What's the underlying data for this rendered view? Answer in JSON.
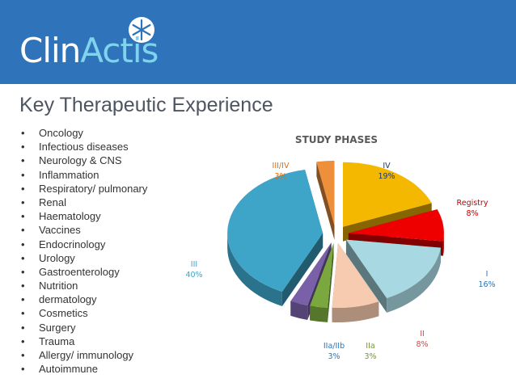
{
  "brand": {
    "logo_part1": "Clin",
    "logo_part2": "Actis",
    "header_color": "#2f74ba"
  },
  "slide": {
    "title": "Key Therapeutic Experience"
  },
  "bullets": [
    "Oncology",
    "Infectious diseases",
    "Neurology & CNS",
    "Inflammation",
    "Respiratory/ pulmonary",
    "Renal",
    "Haematology",
    "Vaccines",
    "Endocrinology",
    "Urology",
    "Gastroenterology",
    "Nutrition",
    "dermatology",
    "Cosmetics",
    "Surgery",
    "Trauma",
    "Allergy/ immunology",
    "Autoimmune"
  ],
  "chart_data": {
    "type": "pie",
    "title": "STUDY PHASES",
    "style": "3d-exploded",
    "slices": [
      {
        "name": "IV",
        "value": 19,
        "label": "19%",
        "color": "#f5b800",
        "label_color": "#1f3864"
      },
      {
        "name": "Registry",
        "value": 8,
        "label": "8%",
        "color": "#ee0000",
        "label_color": "#c00000"
      },
      {
        "name": "I",
        "value": 16,
        "label": "16%",
        "color": "#a8d8e2",
        "label_color": "#2e75b6"
      },
      {
        "name": "II",
        "value": 8,
        "label": "8%",
        "color": "#f7cbb0",
        "label_color": "#c0504d"
      },
      {
        "name": "IIa",
        "value": 3,
        "label": "3%",
        "color": "#7aa83e",
        "label_color": "#77933c"
      },
      {
        "name": "IIa/IIb",
        "value": 3,
        "label": "3%",
        "color": "#7a60a8",
        "label_color": "#2e75b6"
      },
      {
        "name": "III",
        "value": 40,
        "label": "40%",
        "color": "#3ea4c8",
        "label_color": "#3ea4c8"
      },
      {
        "name": "III/IV",
        "value": 3,
        "label": "3%",
        "color": "#ee8f3c",
        "label_color": "#e36c0a"
      }
    ]
  }
}
